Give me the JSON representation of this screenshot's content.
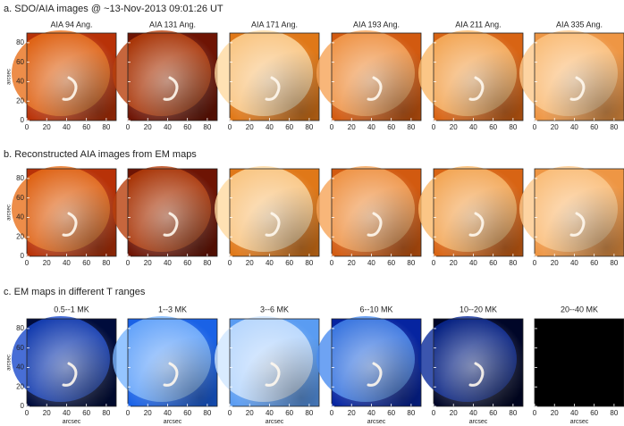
{
  "rows": [
    {
      "title": "a. SDO/AIA images @ ~13-Nov-2013 09:01:26 UT",
      "panels": [
        "AIA 94 Ang.",
        "AIA 131 Ang.",
        "AIA 171 Ang.",
        "AIA 193 Ang.",
        "AIA 211 Ang.",
        "AIA 335 Ang."
      ]
    },
    {
      "title": "b. Reconstructed AIA images from EM maps"
    },
    {
      "title": "c. EM maps in different T ranges",
      "panels": [
        "0.5--1 MK",
        "1--3 MK",
        "3--6 MK",
        "6--10 MK",
        "10--20 MK",
        "20--40 MK"
      ]
    }
  ],
  "axes": {
    "xlim": [
      0,
      90
    ],
    "ylim": [
      0,
      90
    ],
    "xticks": [
      0,
      20,
      40,
      60,
      80
    ],
    "yticks": [
      0,
      20,
      40,
      60,
      80
    ],
    "ylabel": "arcsec",
    "xlabel": "arcsec"
  }
}
